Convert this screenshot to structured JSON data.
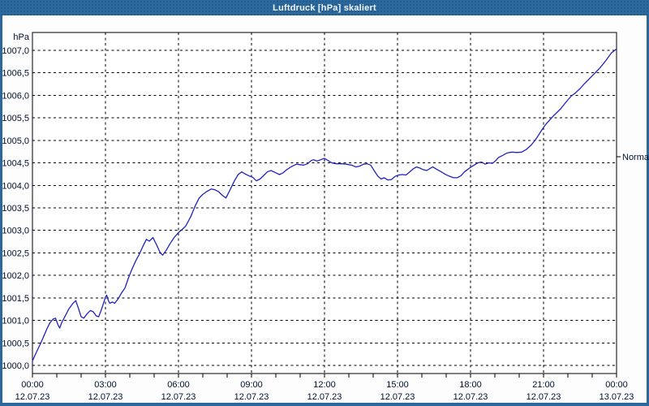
{
  "window": {
    "title": "Luftdruck [hPa] skaliert"
  },
  "colors": {
    "frame_blue": "#2b689e",
    "title_text": "#f2f6fb",
    "plot_background": "#ffffff",
    "page_background": "#fdfdfd",
    "grid": "#000000",
    "axis_text": "#001030",
    "series_line": "#2121c0"
  },
  "chart_data": {
    "type": "line",
    "title": "Luftdruck [hPa] skaliert",
    "y_unit_label": "hPa",
    "xlabel": "",
    "ylabel": "hPa",
    "grid": "dashed",
    "y_axis": {
      "min": 1000.0,
      "max": 1007.0,
      "step": 0.5
    },
    "x_axis": {
      "min_hour": 0,
      "max_hour": 24,
      "label_step_hours": 3,
      "minor_tick_hours": 1
    },
    "y_ticks": [
      {
        "value": 1007.0,
        "label": "1007,0"
      },
      {
        "value": 1006.5,
        "label": "1006,5"
      },
      {
        "value": 1006.0,
        "label": "1006,0"
      },
      {
        "value": 1005.5,
        "label": "1005,5"
      },
      {
        "value": 1005.0,
        "label": "1005,0"
      },
      {
        "value": 1004.5,
        "label": "1004,5"
      },
      {
        "value": 1004.0,
        "label": "1004,0"
      },
      {
        "value": 1003.5,
        "label": "1003,5"
      },
      {
        "value": 1003.0,
        "label": "1003,0"
      },
      {
        "value": 1002.5,
        "label": "1002,5"
      },
      {
        "value": 1002.0,
        "label": "1002,0"
      },
      {
        "value": 1001.5,
        "label": "1001,5"
      },
      {
        "value": 1001.0,
        "label": "1001,0"
      },
      {
        "value": 1000.5,
        "label": "1000,5"
      },
      {
        "value": 1000.0,
        "label": "1000,0"
      }
    ],
    "x_ticks": [
      {
        "hour": 0,
        "time": "00:00",
        "date": "12.07.23"
      },
      {
        "hour": 3,
        "time": "03:00",
        "date": "12.07.23"
      },
      {
        "hour": 6,
        "time": "06:00",
        "date": "12.07.23"
      },
      {
        "hour": 9,
        "time": "09:00",
        "date": "12.07.23"
      },
      {
        "hour": 12,
        "time": "12:00",
        "date": "12.07.23"
      },
      {
        "hour": 15,
        "time": "15:00",
        "date": "12.07.23"
      },
      {
        "hour": 18,
        "time": "18:00",
        "date": "12.07.23"
      },
      {
        "hour": 21,
        "time": "21:00",
        "date": "12.07.23"
      },
      {
        "hour": 24,
        "time": "00:00",
        "date": "13.07.23"
      }
    ],
    "annotations": {
      "normal": {
        "label": "Normal",
        "value": 1004.64
      }
    },
    "series": [
      {
        "name": "Luftdruck",
        "unit": "hPa",
        "points": [
          [
            0.0,
            1000.1
          ],
          [
            0.15,
            1000.28
          ],
          [
            0.3,
            1000.45
          ],
          [
            0.45,
            1000.63
          ],
          [
            0.6,
            1000.82
          ],
          [
            0.72,
            1000.95
          ],
          [
            0.85,
            1001.03
          ],
          [
            0.95,
            1001.05
          ],
          [
            1.05,
            1000.9
          ],
          [
            1.12,
            1000.83
          ],
          [
            1.2,
            1000.95
          ],
          [
            1.33,
            1001.08
          ],
          [
            1.5,
            1001.26
          ],
          [
            1.65,
            1001.37
          ],
          [
            1.78,
            1001.44
          ],
          [
            1.9,
            1001.25
          ],
          [
            2.0,
            1001.08
          ],
          [
            2.11,
            1001.05
          ],
          [
            2.25,
            1001.15
          ],
          [
            2.38,
            1001.22
          ],
          [
            2.5,
            1001.19
          ],
          [
            2.62,
            1001.1
          ],
          [
            2.72,
            1001.08
          ],
          [
            2.82,
            1001.22
          ],
          [
            2.92,
            1001.38
          ],
          [
            3.0,
            1001.52
          ],
          [
            3.05,
            1001.56
          ],
          [
            3.12,
            1001.44
          ],
          [
            3.18,
            1001.38
          ],
          [
            3.28,
            1001.41
          ],
          [
            3.38,
            1001.38
          ],
          [
            3.52,
            1001.48
          ],
          [
            3.65,
            1001.6
          ],
          [
            3.8,
            1001.72
          ],
          [
            3.95,
            1001.95
          ],
          [
            4.1,
            1002.15
          ],
          [
            4.25,
            1002.33
          ],
          [
            4.4,
            1002.48
          ],
          [
            4.55,
            1002.66
          ],
          [
            4.68,
            1002.8
          ],
          [
            4.8,
            1002.76
          ],
          [
            4.95,
            1002.84
          ],
          [
            5.1,
            1002.68
          ],
          [
            5.25,
            1002.5
          ],
          [
            5.35,
            1002.45
          ],
          [
            5.5,
            1002.56
          ],
          [
            5.65,
            1002.7
          ],
          [
            5.82,
            1002.84
          ],
          [
            6.0,
            1002.95
          ],
          [
            6.15,
            1003.02
          ],
          [
            6.3,
            1003.1
          ],
          [
            6.5,
            1003.3
          ],
          [
            6.7,
            1003.56
          ],
          [
            6.85,
            1003.72
          ],
          [
            7.0,
            1003.8
          ],
          [
            7.15,
            1003.86
          ],
          [
            7.35,
            1003.92
          ],
          [
            7.5,
            1003.9
          ],
          [
            7.65,
            1003.86
          ],
          [
            7.8,
            1003.78
          ],
          [
            7.95,
            1003.72
          ],
          [
            8.1,
            1003.88
          ],
          [
            8.3,
            1004.1
          ],
          [
            8.45,
            1004.24
          ],
          [
            8.6,
            1004.3
          ],
          [
            8.75,
            1004.25
          ],
          [
            8.9,
            1004.21
          ],
          [
            9.05,
            1004.18
          ],
          [
            9.2,
            1004.1
          ],
          [
            9.35,
            1004.14
          ],
          [
            9.5,
            1004.22
          ],
          [
            9.65,
            1004.3
          ],
          [
            9.8,
            1004.33
          ],
          [
            10.0,
            1004.28
          ],
          [
            10.15,
            1004.24
          ],
          [
            10.3,
            1004.28
          ],
          [
            10.45,
            1004.35
          ],
          [
            10.65,
            1004.42
          ],
          [
            10.85,
            1004.47
          ],
          [
            11.0,
            1004.46
          ],
          [
            11.15,
            1004.45
          ],
          [
            11.3,
            1004.48
          ],
          [
            11.45,
            1004.55
          ],
          [
            11.55,
            1004.57
          ],
          [
            11.7,
            1004.54
          ],
          [
            11.85,
            1004.57
          ],
          [
            12.0,
            1004.6
          ],
          [
            12.15,
            1004.55
          ],
          [
            12.3,
            1004.5
          ],
          [
            12.5,
            1004.48
          ],
          [
            12.7,
            1004.48
          ],
          [
            12.9,
            1004.47
          ],
          [
            13.1,
            1004.45
          ],
          [
            13.3,
            1004.41
          ],
          [
            13.45,
            1004.43
          ],
          [
            13.6,
            1004.47
          ],
          [
            13.75,
            1004.48
          ],
          [
            13.9,
            1004.45
          ],
          [
            14.05,
            1004.32
          ],
          [
            14.2,
            1004.2
          ],
          [
            14.33,
            1004.14
          ],
          [
            14.45,
            1004.17
          ],
          [
            14.6,
            1004.12
          ],
          [
            14.75,
            1004.13
          ],
          [
            14.9,
            1004.2
          ],
          [
            15.05,
            1004.23
          ],
          [
            15.2,
            1004.24
          ],
          [
            15.35,
            1004.23
          ],
          [
            15.5,
            1004.3
          ],
          [
            15.65,
            1004.37
          ],
          [
            15.78,
            1004.41
          ],
          [
            15.9,
            1004.39
          ],
          [
            16.05,
            1004.35
          ],
          [
            16.2,
            1004.33
          ],
          [
            16.35,
            1004.38
          ],
          [
            16.45,
            1004.41
          ],
          [
            16.6,
            1004.36
          ],
          [
            16.8,
            1004.3
          ],
          [
            16.95,
            1004.25
          ],
          [
            17.1,
            1004.21
          ],
          [
            17.3,
            1004.17
          ],
          [
            17.45,
            1004.17
          ],
          [
            17.6,
            1004.21
          ],
          [
            17.75,
            1004.3
          ],
          [
            17.9,
            1004.36
          ],
          [
            18.0,
            1004.4
          ],
          [
            18.15,
            1004.45
          ],
          [
            18.3,
            1004.5
          ],
          [
            18.45,
            1004.52
          ],
          [
            18.6,
            1004.47
          ],
          [
            18.75,
            1004.5
          ],
          [
            18.9,
            1004.49
          ],
          [
            19.0,
            1004.53
          ],
          [
            19.15,
            1004.62
          ],
          [
            19.3,
            1004.66
          ],
          [
            19.5,
            1004.72
          ],
          [
            19.7,
            1004.74
          ],
          [
            19.9,
            1004.73
          ],
          [
            20.1,
            1004.74
          ],
          [
            20.3,
            1004.8
          ],
          [
            20.5,
            1004.9
          ],
          [
            20.65,
            1005.0
          ],
          [
            20.8,
            1005.12
          ],
          [
            20.95,
            1005.25
          ],
          [
            21.1,
            1005.36
          ],
          [
            21.25,
            1005.45
          ],
          [
            21.4,
            1005.54
          ],
          [
            21.55,
            1005.62
          ],
          [
            21.7,
            1005.7
          ],
          [
            21.85,
            1005.8
          ],
          [
            22.0,
            1005.9
          ],
          [
            22.15,
            1005.99
          ],
          [
            22.3,
            1006.05
          ],
          [
            22.5,
            1006.15
          ],
          [
            22.7,
            1006.27
          ],
          [
            22.9,
            1006.38
          ],
          [
            23.1,
            1006.49
          ],
          [
            23.3,
            1006.6
          ],
          [
            23.5,
            1006.73
          ],
          [
            23.65,
            1006.84
          ],
          [
            23.8,
            1006.95
          ],
          [
            23.93,
            1007.0
          ],
          [
            24.0,
            1007.03
          ]
        ]
      }
    ]
  }
}
